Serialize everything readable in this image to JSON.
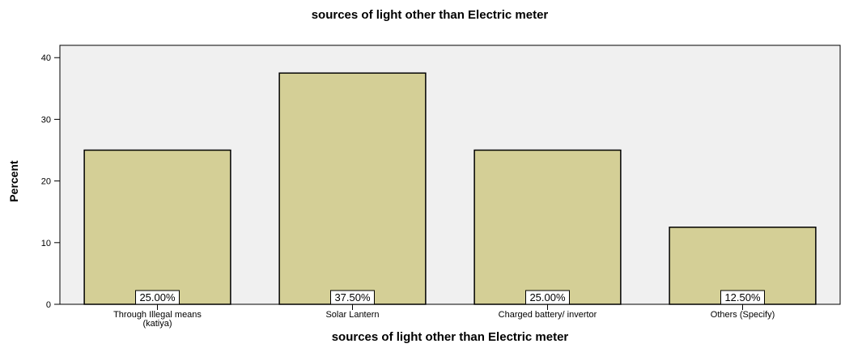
{
  "chart_data": {
    "type": "bar",
    "title": "sources of light other than Electric meter",
    "xlabel": "sources of light other than Electric meter",
    "ylabel": "Percent",
    "categories": [
      [
        "Through Illegal means",
        "(katiya)"
      ],
      [
        "Solar Lantern"
      ],
      [
        "Charged battery/ invertor"
      ],
      [
        "Others (Specify)"
      ]
    ],
    "values": [
      25.0,
      37.5,
      25.0,
      12.5
    ],
    "data_labels": [
      "25.00%",
      "37.50%",
      "25.00%",
      "12.50%"
    ],
    "ylim": [
      0,
      42
    ],
    "yticks": [
      0,
      10,
      20,
      30,
      40
    ],
    "ytick_labels": [
      "0",
      "10",
      "20",
      "30",
      "40"
    ],
    "grid": false,
    "colors": {
      "bar_fill": "#d4cf96",
      "bar_stroke": "#000000",
      "plot_background": "#f0f0f0",
      "label_box": "#ffffff"
    }
  }
}
